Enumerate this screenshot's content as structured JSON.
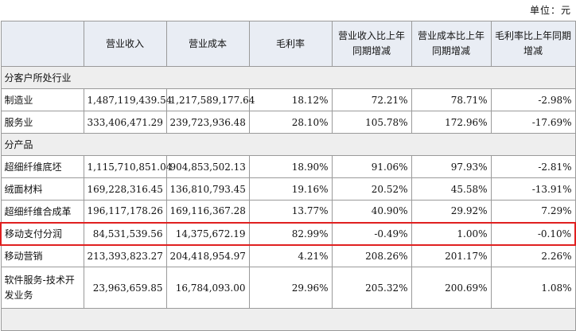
{
  "unit_label": "单位：元",
  "headers": [
    "",
    "营业收入",
    "营业成本",
    "毛利率",
    "营业收入比上年同期增减",
    "营业成本比上年同期增减",
    "毛利率比上年同期增减"
  ],
  "sections": [
    {
      "title": "分客户所处行业",
      "rows": [
        {
          "name": "制造业",
          "revenue": "1,487,119,439.54",
          "cost": "1,217,589,177.64",
          "margin": "18.12%",
          "rev_change": "72.21%",
          "cost_change": "78.71%",
          "margin_change": "-2.98%"
        },
        {
          "name": "服务业",
          "revenue": "333,406,471.29",
          "cost": "239,723,936.48",
          "margin": "28.10%",
          "rev_change": "105.78%",
          "cost_change": "172.96%",
          "margin_change": "-17.69%"
        }
      ]
    },
    {
      "title": "分产品",
      "rows": [
        {
          "name": "超细纤维底坯",
          "revenue": "1,115,710,851.04",
          "cost": "904,853,502.13",
          "margin": "18.90%",
          "rev_change": "91.06%",
          "cost_change": "97.93%",
          "margin_change": "-2.81%"
        },
        {
          "name": "绒面材料",
          "revenue": "169,228,316.45",
          "cost": "136,810,793.45",
          "margin": "19.16%",
          "rev_change": "20.52%",
          "cost_change": "45.58%",
          "margin_change": "-13.91%"
        },
        {
          "name": "超细纤维合成革",
          "revenue": "196,117,178.26",
          "cost": "169,116,367.28",
          "margin": "13.77%",
          "rev_change": "40.90%",
          "cost_change": "29.92%",
          "margin_change": "7.29%"
        },
        {
          "name": "移动支付分润",
          "revenue": "84,531,539.56",
          "cost": "14,375,672.19",
          "margin": "82.99%",
          "rev_change": "-0.49%",
          "cost_change": "1.00%",
          "margin_change": "-0.10%",
          "highlighted": true
        },
        {
          "name": "移动营销",
          "revenue": "213,393,823.27",
          "cost": "204,418,954.97",
          "margin": "4.21%",
          "rev_change": "208.26%",
          "cost_change": "201.17%",
          "margin_change": "2.26%"
        },
        {
          "name": "软件服务-技术开发业务",
          "revenue": "23,963,659.85",
          "cost": "16,784,093.00",
          "margin": "29.96%",
          "rev_change": "205.32%",
          "cost_change": "200.69%",
          "margin_change": "1.08%",
          "tall": true
        }
      ]
    }
  ],
  "colors": {
    "highlight_border": "#e02020",
    "header_bg": "#e9edf4",
    "section_bg": "#eeeeee"
  }
}
